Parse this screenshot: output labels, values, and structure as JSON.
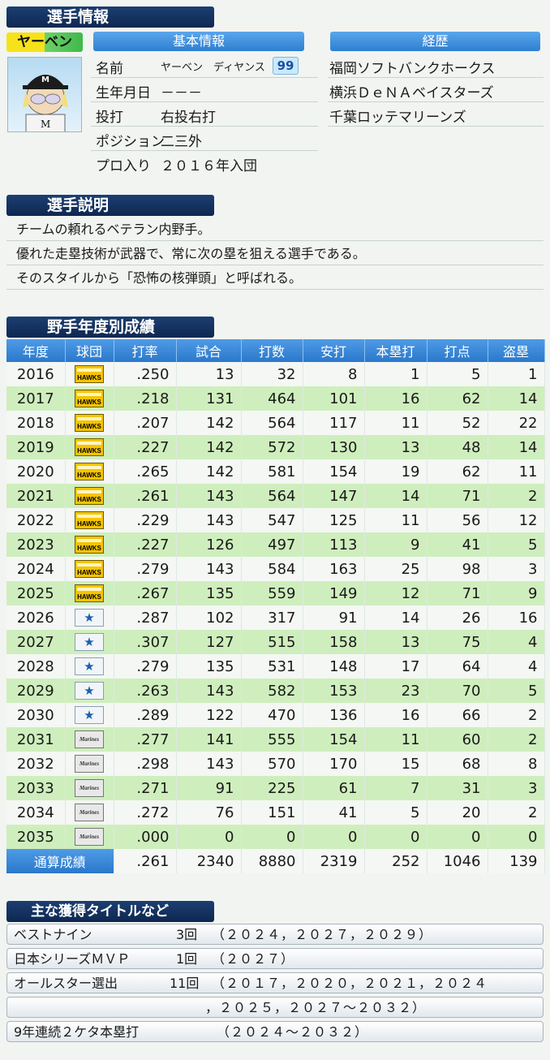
{
  "sections": {
    "player_info": "選手情報",
    "description": "選手説明",
    "yearly_stats": "野手年度別成績",
    "titles": "主な獲得タイトルなど"
  },
  "player": {
    "short_name": "ヤーベン",
    "basic_header": "基本情報",
    "career_header": "経歴",
    "fields": [
      {
        "label": "名前",
        "value": "ヤーベン　ディヤンス"
      },
      {
        "label": "生年月日",
        "value": "－－－"
      },
      {
        "label": "投打",
        "value": "右投右打"
      },
      {
        "label": "ポジション",
        "value": "二三外"
      },
      {
        "label": "プロ入り",
        "value": "２０１６年入団"
      }
    ],
    "number": "99",
    "career": [
      "福岡ソフトバンクホークス",
      "横浜ＤｅＮＡベイスターズ",
      "千葉ロッテマリーンズ"
    ]
  },
  "description_lines": [
    "チームの頼れるベテラン内野手。",
    "優れた走塁技術が武器で、常に次の塁を狙える選手である。",
    "そのスタイルから「恐怖の核弾頭」と呼ばれる。"
  ],
  "stats": {
    "headers": [
      "年度",
      "球団",
      "打率",
      "試合",
      "打数",
      "安打",
      "本塁打",
      "打点",
      "盗塁"
    ],
    "rows": [
      {
        "year": "2016",
        "team": "hawks",
        "avg": ".250",
        "g": "13",
        "ab": "32",
        "h": "8",
        "hr": "1",
        "rbi": "5",
        "sb": "1"
      },
      {
        "year": "2017",
        "team": "hawks",
        "avg": ".218",
        "g": "131",
        "ab": "464",
        "h": "101",
        "hr": "16",
        "rbi": "62",
        "sb": "14"
      },
      {
        "year": "2018",
        "team": "hawks",
        "avg": ".207",
        "g": "142",
        "ab": "564",
        "h": "117",
        "hr": "11",
        "rbi": "52",
        "sb": "22"
      },
      {
        "year": "2019",
        "team": "hawks",
        "avg": ".227",
        "g": "142",
        "ab": "572",
        "h": "130",
        "hr": "13",
        "rbi": "48",
        "sb": "14"
      },
      {
        "year": "2020",
        "team": "hawks",
        "avg": ".265",
        "g": "142",
        "ab": "581",
        "h": "154",
        "hr": "19",
        "rbi": "62",
        "sb": "11"
      },
      {
        "year": "2021",
        "team": "hawks",
        "avg": ".261",
        "g": "143",
        "ab": "564",
        "h": "147",
        "hr": "14",
        "rbi": "71",
        "sb": "2"
      },
      {
        "year": "2022",
        "team": "hawks",
        "avg": ".229",
        "g": "143",
        "ab": "547",
        "h": "125",
        "hr": "11",
        "rbi": "56",
        "sb": "12"
      },
      {
        "year": "2023",
        "team": "hawks",
        "avg": ".227",
        "g": "126",
        "ab": "497",
        "h": "113",
        "hr": "9",
        "rbi": "41",
        "sb": "5"
      },
      {
        "year": "2024",
        "team": "hawks",
        "avg": ".279",
        "g": "143",
        "ab": "584",
        "h": "163",
        "hr": "25",
        "rbi": "98",
        "sb": "3"
      },
      {
        "year": "2025",
        "team": "hawks",
        "avg": ".267",
        "g": "135",
        "ab": "559",
        "h": "149",
        "hr": "12",
        "rbi": "71",
        "sb": "9"
      },
      {
        "year": "2026",
        "team": "baystars",
        "avg": ".287",
        "g": "102",
        "ab": "317",
        "h": "91",
        "hr": "14",
        "rbi": "26",
        "sb": "16"
      },
      {
        "year": "2027",
        "team": "baystars",
        "avg": ".307",
        "g": "127",
        "ab": "515",
        "h": "158",
        "hr": "13",
        "rbi": "75",
        "sb": "4"
      },
      {
        "year": "2028",
        "team": "baystars",
        "avg": ".279",
        "g": "135",
        "ab": "531",
        "h": "148",
        "hr": "17",
        "rbi": "64",
        "sb": "4"
      },
      {
        "year": "2029",
        "team": "baystars",
        "avg": ".263",
        "g": "143",
        "ab": "582",
        "h": "153",
        "hr": "23",
        "rbi": "70",
        "sb": "5"
      },
      {
        "year": "2030",
        "team": "baystars",
        "avg": ".289",
        "g": "122",
        "ab": "470",
        "h": "136",
        "hr": "16",
        "rbi": "66",
        "sb": "2"
      },
      {
        "year": "2031",
        "team": "marines",
        "avg": ".277",
        "g": "141",
        "ab": "555",
        "h": "154",
        "hr": "11",
        "rbi": "60",
        "sb": "2"
      },
      {
        "year": "2032",
        "team": "marines",
        "avg": ".298",
        "g": "143",
        "ab": "570",
        "h": "170",
        "hr": "15",
        "rbi": "68",
        "sb": "8"
      },
      {
        "year": "2033",
        "team": "marines",
        "avg": ".271",
        "g": "91",
        "ab": "225",
        "h": "61",
        "hr": "7",
        "rbi": "31",
        "sb": "3"
      },
      {
        "year": "2034",
        "team": "marines",
        "avg": ".272",
        "g": "76",
        "ab": "151",
        "h": "41",
        "hr": "5",
        "rbi": "20",
        "sb": "2"
      },
      {
        "year": "2035",
        "team": "marines",
        "avg": ".000",
        "g": "0",
        "ab": "0",
        "h": "0",
        "hr": "0",
        "rbi": "0",
        "sb": "0"
      }
    ],
    "total": {
      "label": "通算成績",
      "avg": ".261",
      "g": "2340",
      "ab": "8880",
      "h": "2319",
      "hr": "252",
      "rbi": "1046",
      "sb": "139"
    }
  },
  "team_logos": {
    "hawks": "HAWKS",
    "baystars": "★",
    "marines": "Marines"
  },
  "titles": [
    {
      "name": "ベストナイン",
      "count": "3回",
      "years": "（２０２４，２０２７，２０２９）"
    },
    {
      "name": "日本シリーズＭＶＰ",
      "count": "1回",
      "years": "（２０２７）"
    },
    {
      "name": "オールスター選出",
      "count": "11回",
      "years": "（２０１７，２０２０，２０２１，２０２４"
    },
    {
      "name": "",
      "count": "",
      "years": "，２０２５，２０２７～２０３２）"
    },
    {
      "name": "9年連続２ケタ本塁打",
      "count": "",
      "years": "（２０２４～２０３２）"
    }
  ]
}
